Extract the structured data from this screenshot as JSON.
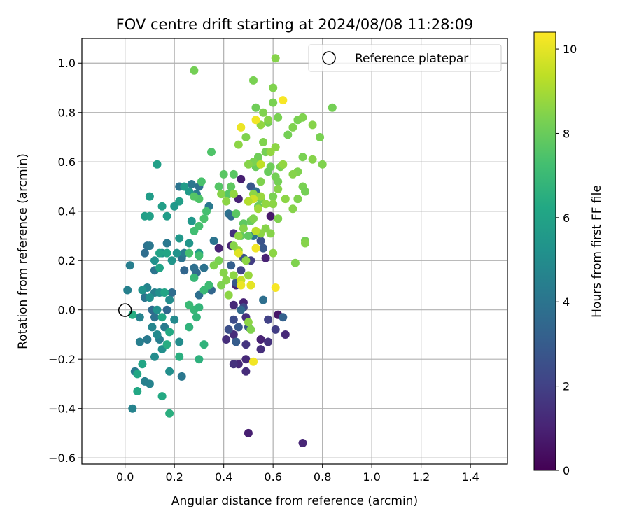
{
  "chart_data": {
    "type": "scatter",
    "title": "FOV centre drift starting at 2024/08/08 11:28:09",
    "xlabel": "Angular distance from reference (arcmin)",
    "ylabel": "Rotation from reference (arcmin)",
    "xlim": [
      -0.175,
      1.55
    ],
    "ylim": [
      -0.625,
      1.1
    ],
    "xticks": [
      "0.0",
      "0.2",
      "0.4",
      "0.6",
      "0.8",
      "1.0",
      "1.2",
      "1.4"
    ],
    "yticks": [
      "−0.6",
      "−0.4",
      "−0.2",
      "0.0",
      "0.2",
      "0.4",
      "0.6",
      "0.8",
      "1.0"
    ],
    "grid": true,
    "legend": {
      "position": "top-right",
      "entries": [
        "Reference platepar"
      ]
    },
    "colorbar": {
      "label": "Hours from first FF file",
      "colormap": "viridis",
      "range": [
        0,
        10.4
      ],
      "ticks": [
        "0",
        "2",
        "4",
        "6",
        "8",
        "10"
      ]
    },
    "reference_point": {
      "x": 0.0,
      "y": 0.0
    },
    "points": [
      [
        0.62,
        -0.02,
        0.6
      ],
      [
        0.59,
        0.38,
        0.7
      ],
      [
        0.5,
        -0.5,
        0.9
      ],
      [
        0.72,
        -0.54,
        1.1
      ],
      [
        0.46,
        -0.22,
        1.2
      ],
      [
        0.49,
        -0.25,
        1.3
      ],
      [
        0.55,
        -0.16,
        1.4
      ],
      [
        0.44,
        -0.22,
        1.5
      ],
      [
        0.49,
        -0.14,
        1.6
      ],
      [
        0.49,
        -0.2,
        1.2
      ],
      [
        0.65,
        -0.1,
        1.2
      ],
      [
        0.55,
        -0.12,
        1.0
      ],
      [
        0.44,
        -0.1,
        1.3
      ],
      [
        0.41,
        -0.12,
        1.4
      ],
      [
        0.48,
        0.03,
        1.0
      ],
      [
        0.45,
        0.1,
        1.0
      ],
      [
        0.44,
        0.02,
        1.2
      ],
      [
        0.38,
        0.25,
        1.0
      ],
      [
        0.43,
        0.26,
        1.1
      ],
      [
        0.46,
        0.45,
        1.0
      ],
      [
        0.47,
        0.53,
        0.9
      ],
      [
        0.57,
        0.21,
        1.0
      ],
      [
        0.44,
        0.31,
        1.5
      ],
      [
        0.49,
        -0.03,
        1.4
      ],
      [
        0.58,
        -0.13,
        1.5
      ],
      [
        0.58,
        -0.04,
        2.0
      ],
      [
        0.61,
        -0.08,
        1.9
      ],
      [
        0.44,
        -0.04,
        2.4
      ],
      [
        0.42,
        -0.08,
        2.5
      ],
      [
        0.48,
        0.01,
        2.3
      ],
      [
        0.47,
        0.16,
        2.1
      ],
      [
        0.51,
        0.2,
        1.9
      ],
      [
        0.48,
        0.21,
        2.6
      ],
      [
        0.5,
        -0.07,
        2.9
      ],
      [
        0.45,
        0.11,
        2.8
      ],
      [
        0.55,
        0.28,
        2.6
      ],
      [
        0.56,
        0.25,
        2.8
      ],
      [
        0.43,
        0.18,
        3.1
      ],
      [
        0.64,
        -0.03,
        3.2
      ],
      [
        0.51,
        0.5,
        2.8
      ],
      [
        0.45,
        -0.13,
        3.0
      ],
      [
        0.46,
        -0.07,
        2.9
      ],
      [
        0.56,
        0.04,
        3.8
      ],
      [
        0.47,
        0.0,
        3.5
      ],
      [
        0.42,
        0.39,
        3.9
      ],
      [
        0.43,
        0.38,
        3.6
      ],
      [
        0.52,
        0.3,
        4.0
      ],
      [
        0.53,
        0.48,
        3.7
      ],
      [
        0.35,
        0.08,
        3.4
      ],
      [
        0.3,
        0.06,
        3.8
      ],
      [
        0.32,
        0.17,
        3.9
      ],
      [
        0.24,
        0.16,
        3.4
      ],
      [
        0.29,
        0.15,
        3.6
      ],
      [
        0.19,
        0.07,
        3.7
      ],
      [
        0.17,
        0.0,
        3.5
      ],
      [
        0.12,
        -0.03,
        3.9
      ],
      [
        0.11,
        0.0,
        3.6
      ],
      [
        0.08,
        0.05,
        4.0
      ],
      [
        0.09,
        -0.12,
        4.2
      ],
      [
        0.08,
        0.23,
        3.7
      ],
      [
        0.09,
        0.26,
        3.9
      ],
      [
        0.1,
        0.26,
        4.1
      ],
      [
        0.12,
        0.16,
        4.0
      ],
      [
        0.17,
        0.27,
        4.2
      ],
      [
        0.23,
        0.21,
        3.9
      ],
      [
        0.24,
        0.23,
        4.3
      ],
      [
        0.28,
        0.17,
        3.8
      ],
      [
        0.27,
        0.51,
        4.1
      ],
      [
        0.22,
        0.5,
        4.0
      ],
      [
        0.3,
        0.5,
        3.9
      ],
      [
        0.34,
        0.42,
        4.2
      ],
      [
        0.29,
        0.47,
        4.3
      ],
      [
        0.36,
        0.28,
        4.0
      ],
      [
        0.23,
        -0.27,
        4.1
      ],
      [
        0.16,
        -0.07,
        4.3
      ],
      [
        0.14,
        -0.12,
        4.4
      ],
      [
        0.12,
        0.07,
        4.5
      ],
      [
        0.1,
        -0.3,
        4.6
      ],
      [
        0.08,
        -0.29,
        4.5
      ],
      [
        0.06,
        -0.13,
        4.4
      ],
      [
        0.04,
        -0.25,
        4.3
      ],
      [
        0.03,
        -0.4,
        4.6
      ],
      [
        0.02,
        0.18,
        4.4
      ],
      [
        0.01,
        0.08,
        4.5
      ],
      [
        0.09,
        0.09,
        4.6
      ],
      [
        0.06,
        -0.03,
        4.6
      ],
      [
        0.11,
        -0.07,
        4.7
      ],
      [
        0.13,
        -0.1,
        4.9
      ],
      [
        0.12,
        -0.19,
        5.0
      ],
      [
        0.15,
        -0.16,
        5.1
      ],
      [
        0.18,
        -0.25,
        5.1
      ],
      [
        0.2,
        -0.04,
        4.9
      ],
      [
        0.22,
        -0.13,
        5.0
      ],
      [
        0.18,
        0.04,
        5.0
      ],
      [
        0.14,
        0.07,
        5.1
      ],
      [
        0.13,
        0.0,
        5.2
      ],
      [
        0.1,
        0.05,
        5.2
      ],
      [
        0.07,
        0.08,
        5.3
      ],
      [
        0.12,
        0.2,
        5.2
      ],
      [
        0.15,
        0.23,
        5.3
      ],
      [
        0.19,
        0.2,
        5.4
      ],
      [
        0.21,
        0.23,
        5.3
      ],
      [
        0.22,
        0.29,
        5.5
      ],
      [
        0.26,
        0.27,
        5.4
      ],
      [
        0.3,
        0.23,
        5.6
      ],
      [
        0.27,
        0.36,
        5.5
      ],
      [
        0.24,
        0.5,
        5.7
      ],
      [
        0.26,
        0.48,
        5.6
      ],
      [
        0.22,
        0.44,
        5.8
      ],
      [
        0.2,
        0.42,
        5.5
      ],
      [
        0.17,
        0.38,
        5.7
      ],
      [
        0.15,
        0.42,
        5.8
      ],
      [
        0.13,
        0.59,
        5.9
      ],
      [
        0.1,
        0.46,
        5.7
      ],
      [
        0.08,
        0.38,
        5.8
      ],
      [
        0.1,
        0.38,
        5.9
      ],
      [
        0.14,
        0.23,
        6.0
      ],
      [
        0.17,
        0.23,
        6.1
      ],
      [
        0.14,
        0.17,
        6.0
      ],
      [
        0.16,
        0.07,
        6.1
      ],
      [
        0.15,
        -0.03,
        6.2
      ],
      [
        0.18,
        -0.09,
        6.3
      ],
      [
        0.17,
        -0.14,
        6.4
      ],
      [
        0.15,
        -0.35,
        6.3
      ],
      [
        0.05,
        -0.33,
        6.2
      ],
      [
        0.07,
        -0.22,
        6.1
      ],
      [
        0.05,
        -0.26,
        6.2
      ],
      [
        0.03,
        -0.02,
        6.4
      ],
      [
        0.18,
        -0.42,
        6.5
      ],
      [
        0.22,
        -0.19,
        6.5
      ],
      [
        0.3,
        -0.2,
        6.6
      ],
      [
        0.32,
        -0.14,
        6.7
      ],
      [
        0.29,
        -0.03,
        6.8
      ],
      [
        0.26,
        -0.07,
        6.7
      ],
      [
        0.28,
        0.0,
        6.9
      ],
      [
        0.3,
        0.01,
        6.8
      ],
      [
        0.26,
        0.02,
        7.0
      ],
      [
        0.28,
        0.13,
        6.9
      ],
      [
        0.32,
        0.08,
        7.0
      ],
      [
        0.34,
        0.1,
        7.1
      ],
      [
        0.3,
        0.22,
        7.2
      ],
      [
        0.26,
        0.23,
        7.3
      ],
      [
        0.28,
        0.32,
        7.2
      ],
      [
        0.3,
        0.34,
        7.3
      ],
      [
        0.32,
        0.37,
        7.4
      ],
      [
        0.33,
        0.4,
        7.3
      ],
      [
        0.3,
        0.45,
        7.5
      ],
      [
        0.31,
        0.52,
        7.4
      ],
      [
        0.28,
        0.46,
        7.6
      ],
      [
        0.35,
        0.64,
        7.5
      ],
      [
        0.38,
        0.5,
        7.6
      ],
      [
        0.4,
        0.55,
        7.7
      ],
      [
        0.42,
        0.47,
        7.6
      ],
      [
        0.44,
        0.55,
        7.7
      ],
      [
        0.43,
        0.5,
        7.8
      ],
      [
        0.45,
        0.39,
        7.7
      ],
      [
        0.48,
        0.35,
        7.8
      ],
      [
        0.47,
        0.3,
        7.9
      ],
      [
        0.5,
        0.3,
        7.8
      ],
      [
        0.51,
        0.36,
        8.0
      ],
      [
        0.5,
        0.44,
        7.9
      ],
      [
        0.54,
        0.42,
        8.0
      ],
      [
        0.55,
        0.45,
        8.1
      ],
      [
        0.53,
        0.58,
        8.0
      ],
      [
        0.54,
        0.62,
        8.1
      ],
      [
        0.57,
        0.64,
        8.2
      ],
      [
        0.59,
        0.58,
        8.1
      ],
      [
        0.61,
        0.54,
        8.2
      ],
      [
        0.63,
        0.58,
        8.3
      ],
      [
        0.62,
        0.52,
        8.2
      ],
      [
        0.6,
        0.46,
        8.3
      ],
      [
        0.58,
        0.56,
        8.0
      ],
      [
        0.55,
        0.52,
        8.4
      ],
      [
        0.52,
        0.6,
        8.3
      ],
      [
        0.56,
        0.68,
        8.4
      ],
      [
        0.58,
        0.76,
        8.2
      ],
      [
        0.6,
        0.84,
        8.3
      ],
      [
        0.56,
        0.8,
        8.4
      ],
      [
        0.53,
        0.82,
        8.1
      ],
      [
        0.52,
        0.93,
        8.3
      ],
      [
        0.61,
        1.02,
        8.5
      ],
      [
        0.28,
        0.97,
        8.2
      ],
      [
        0.6,
        0.9,
        8.4
      ],
      [
        0.62,
        0.78,
        8.3
      ],
      [
        0.66,
        0.71,
        8.2
      ],
      [
        0.68,
        0.74,
        8.4
      ],
      [
        0.7,
        0.77,
        8.3
      ],
      [
        0.72,
        0.78,
        8.4
      ],
      [
        0.76,
        0.75,
        8.5
      ],
      [
        0.79,
        0.7,
        8.3
      ],
      [
        0.84,
        0.82,
        8.2
      ],
      [
        0.8,
        0.59,
        8.4
      ],
      [
        0.76,
        0.61,
        8.5
      ],
      [
        0.72,
        0.62,
        8.3
      ],
      [
        0.7,
        0.56,
        8.4
      ],
      [
        0.68,
        0.55,
        8.5
      ],
      [
        0.72,
        0.5,
        8.3
      ],
      [
        0.73,
        0.48,
        8.2
      ],
      [
        0.7,
        0.45,
        8.4
      ],
      [
        0.68,
        0.41,
        8.5
      ],
      [
        0.65,
        0.45,
        8.6
      ],
      [
        0.62,
        0.37,
        8.4
      ],
      [
        0.59,
        0.31,
        8.5
      ],
      [
        0.6,
        0.23,
        8.6
      ],
      [
        0.57,
        0.33,
        8.5
      ],
      [
        0.55,
        0.31,
        8.6
      ],
      [
        0.52,
        0.37,
        8.4
      ],
      [
        0.48,
        0.33,
        8.5
      ],
      [
        0.46,
        0.3,
        8.6
      ],
      [
        0.44,
        0.26,
        8.5
      ],
      [
        0.46,
        0.24,
        8.7
      ],
      [
        0.49,
        0.2,
        8.6
      ],
      [
        0.5,
        0.14,
        8.8
      ],
      [
        0.47,
        0.12,
        8.7
      ],
      [
        0.44,
        0.14,
        8.6
      ],
      [
        0.41,
        0.12,
        8.5
      ],
      [
        0.39,
        0.1,
        8.4
      ],
      [
        0.42,
        0.06,
        8.6
      ],
      [
        0.4,
        0.15,
        8.5
      ],
      [
        0.38,
        0.2,
        8.3
      ],
      [
        0.36,
        0.18,
        8.4
      ],
      [
        0.39,
        0.47,
        8.5
      ],
      [
        0.41,
        0.44,
        8.6
      ],
      [
        0.44,
        0.47,
        8.7
      ],
      [
        0.46,
        0.67,
        8.6
      ],
      [
        0.49,
        0.7,
        8.4
      ],
      [
        0.5,
        0.59,
        8.5
      ],
      [
        0.55,
        0.75,
        8.7
      ],
      [
        0.58,
        0.77,
        8.5
      ],
      [
        0.61,
        0.66,
        8.6
      ],
      [
        0.64,
        0.59,
        8.7
      ],
      [
        0.62,
        0.49,
        8.5
      ],
      [
        0.6,
        0.43,
        8.6
      ],
      [
        0.57,
        0.43,
        8.7
      ],
      [
        0.55,
        0.46,
        8.8
      ],
      [
        0.52,
        0.47,
        8.6
      ],
      [
        0.5,
        -0.05,
        8.6
      ],
      [
        0.51,
        -0.08,
        8.4
      ],
      [
        0.69,
        0.19,
        8.4
      ],
      [
        0.73,
        0.28,
        8.2
      ],
      [
        0.73,
        0.27,
        8.5
      ],
      [
        0.59,
        0.64,
        8.7
      ],
      [
        0.54,
        0.41,
        8.9
      ],
      [
        0.53,
        0.32,
        9.3
      ],
      [
        0.52,
        0.45,
        9.6
      ],
      [
        0.5,
        0.44,
        9.2
      ],
      [
        0.47,
        0.12,
        9.5
      ],
      [
        0.55,
        0.59,
        9.4
      ],
      [
        0.51,
        0.1,
        10.0
      ],
      [
        0.47,
        0.1,
        10.1
      ],
      [
        0.46,
        0.23,
        9.9
      ],
      [
        0.52,
        -0.21,
        10.2
      ],
      [
        0.61,
        0.09,
        10.3
      ],
      [
        0.53,
        0.25,
        10.2
      ],
      [
        0.47,
        0.74,
        10.1
      ],
      [
        0.64,
        0.85,
        10.3
      ],
      [
        0.53,
        0.77,
        10.2
      ]
    ]
  }
}
